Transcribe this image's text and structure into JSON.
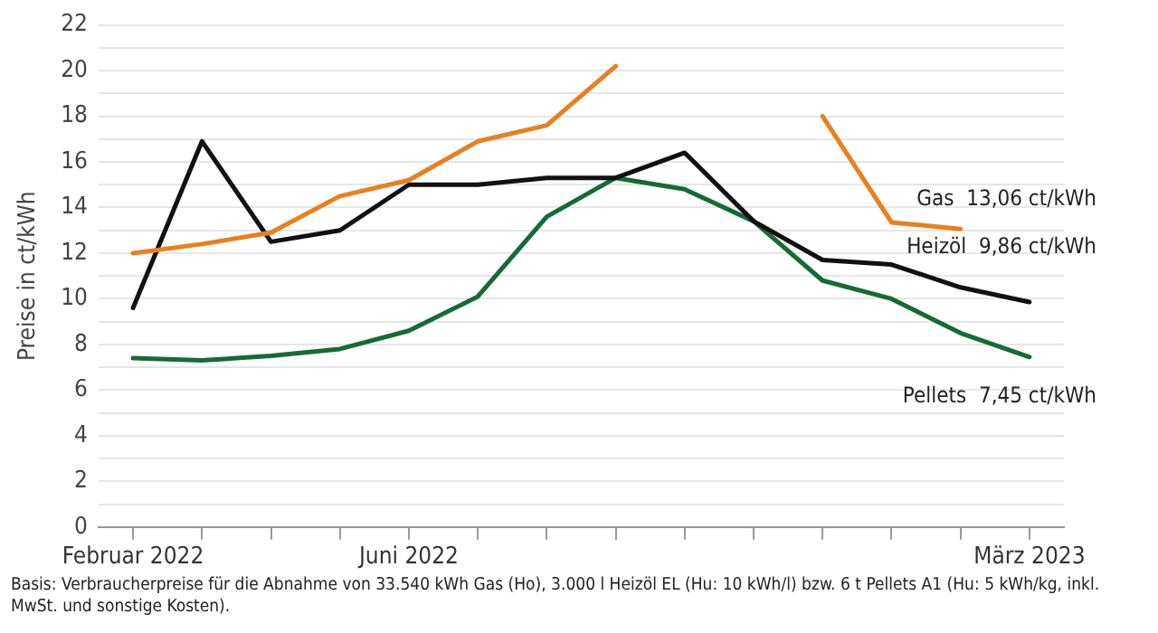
{
  "chart_data": {
    "type": "line",
    "ylabel": "Preise in ct/kWh",
    "categories": [
      "Februar 2022",
      null,
      null,
      null,
      "Juni 2022",
      null,
      null,
      null,
      null,
      null,
      null,
      null,
      null,
      "März 2023"
    ],
    "series": [
      {
        "name": "Gas",
        "color": "#e8801e",
        "values": [
          12.0,
          12.4,
          12.9,
          14.5,
          15.2,
          16.9,
          17.6,
          20.2,
          null,
          null,
          18.0,
          13.35,
          13.06,
          null
        ],
        "value_labels": [
          null,
          null,
          null,
          null,
          null,
          null,
          null,
          null,
          null,
          null,
          null,
          null,
          "13,06 ct/kWh",
          null
        ]
      },
      {
        "name": "Heizöl",
        "color": "#111111",
        "values": [
          9.6,
          16.9,
          12.5,
          13.0,
          15.0,
          15.0,
          15.3,
          15.3,
          16.4,
          13.4,
          11.7,
          11.5,
          10.5,
          9.86
        ],
        "value_labels": [
          null,
          null,
          null,
          null,
          null,
          null,
          null,
          null,
          null,
          null,
          null,
          null,
          null,
          "9,86 ct/kWh"
        ]
      },
      {
        "name": "Pellets",
        "color": "#156b35",
        "values": [
          7.4,
          7.3,
          7.5,
          7.8,
          8.6,
          10.1,
          13.6,
          15.3,
          14.8,
          13.4,
          10.8,
          10.0,
          8.5,
          7.45
        ],
        "value_labels": [
          null,
          null,
          null,
          null,
          null,
          null,
          null,
          null,
          null,
          null,
          null,
          null,
          null,
          "7,45 ct/kWh"
        ]
      }
    ],
    "ylim": [
      0,
      22
    ],
    "yticks": [
      0,
      {
        "value": 1,
        "label": null
      },
      2,
      {
        "value": 3,
        "label": null
      },
      4,
      {
        "value": 5,
        "label": null
      },
      6,
      {
        "value": 7,
        "label": null
      },
      8,
      {
        "value": 9,
        "label": null
      },
      10,
      {
        "value": 11,
        "label": null
      },
      12,
      {
        "value": 13,
        "label": null
      },
      14,
      {
        "value": 15,
        "label": null
      },
      16,
      {
        "value": 17,
        "label": null
      },
      18,
      {
        "value": 19,
        "label": null
      },
      20,
      {
        "value": 21,
        "label": null
      },
      22
    ],
    "grid": "y",
    "legend": false,
    "marker": "none",
    "line_style": "solid",
    "annotations": [
      "Basis: Verbraucherpreise für die Abnahme von 33.540 kWh Gas (Ho), 3.000 l Heizöl EL (Hu: 10 kWh/l) bzw. 6 t Pellets A1 (Hu: 5 kWh/kg, inkl. MwSt. und sonstige Kosten)."
    ]
  }
}
